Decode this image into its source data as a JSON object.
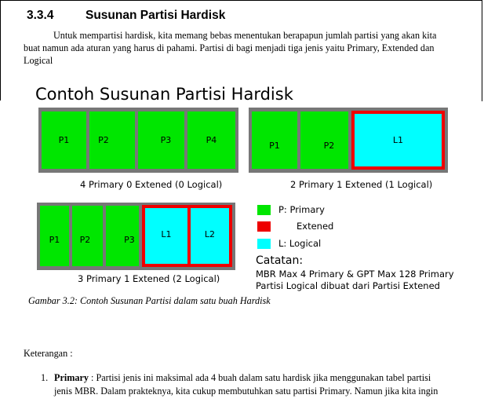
{
  "section": {
    "number": "3.3.4",
    "title": "Susunan Partisi Hardisk"
  },
  "intro": "Untuk mempartisi hardisk, kita memang bebas menentukan berapapun jumlah partisi yang akan kita buat namun ada aturan yang harus di pahami. Partisi di bagi menjadi tiga jenis yaitu Primary, Extended dan Logical",
  "figure": {
    "title": "Contoh Susunan Partisi Hardisk",
    "diagram1": {
      "cells": [
        "P1",
        "P2",
        "P3",
        "P4"
      ],
      "caption": "4 Primary 0 Extened (0 Logical)"
    },
    "diagram2": {
      "cells": [
        "P1",
        "P2",
        "L1"
      ],
      "caption": "2 Primary 1 Extened (1 Logical)"
    },
    "diagram3": {
      "cells": [
        "P1",
        "P2",
        "P3",
        "L1",
        "L2"
      ],
      "caption": "3 Primary 1 Extened (2 Logical)"
    },
    "legend": [
      {
        "label": "P: Primary",
        "color": "#00e600"
      },
      {
        "label": "Extened",
        "color": "#ee0000"
      },
      {
        "label": "L: Logical",
        "color": "#00ffff"
      }
    ],
    "note": {
      "title": "Catatan:",
      "lines": [
        "MBR Max 4 Primary & GPT Max 128 Primary",
        "Partisi Logical dibuat dari Partisi Extened"
      ]
    },
    "caption": "Gambar 3.2: Contoh Susunan Partisi dalam satu buah Hardisk"
  },
  "keterangan": "Keterangan :",
  "list": [
    {
      "marker": "1.",
      "term": "Primary",
      "text": " : Partisi jenis ini maksimal ada 4 buah dalam satu hardisk jika menggunakan tabel partisi jenis MBR. Dalam prakteknya, kita cukup membutuhkan satu partisi Primary. Namun jika kita ingin"
    }
  ]
}
